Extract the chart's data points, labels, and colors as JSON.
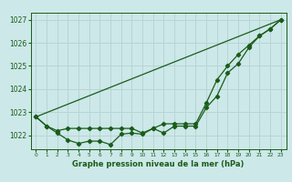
{
  "title": "Graphe pression niveau de la mer (hPa)",
  "bg_color": "#cce8e8",
  "grid_color": "#b8d4d4",
  "line_color": "#1a5c1a",
  "xlim": [
    -0.5,
    23.5
  ],
  "ylim": [
    1021.4,
    1027.3
  ],
  "yticks": [
    1022,
    1023,
    1024,
    1025,
    1026,
    1027
  ],
  "xticks": [
    0,
    1,
    2,
    3,
    4,
    5,
    6,
    7,
    8,
    9,
    10,
    11,
    12,
    13,
    14,
    15,
    16,
    17,
    18,
    19,
    20,
    21,
    22,
    23
  ],
  "series1_x": [
    0,
    1,
    2,
    3,
    4,
    5,
    6,
    7,
    8,
    9,
    10,
    11,
    12,
    13,
    14,
    15,
    16,
    17,
    18,
    19,
    20,
    21,
    22,
    23
  ],
  "series1_y": [
    1022.8,
    1022.4,
    1022.1,
    1021.8,
    1021.65,
    1021.75,
    1021.75,
    1021.6,
    1022.05,
    1022.1,
    1022.05,
    1022.3,
    1022.1,
    1022.4,
    1022.4,
    1022.4,
    1023.2,
    1023.7,
    1024.7,
    1025.1,
    1025.8,
    1026.3,
    1026.6,
    1027.0
  ],
  "series2_x": [
    0,
    1,
    2,
    3,
    4,
    5,
    6,
    7,
    8,
    9,
    10,
    11,
    12,
    13,
    14,
    15,
    16,
    17,
    18,
    19,
    20,
    21,
    22,
    23
  ],
  "series2_y": [
    1022.8,
    1022.4,
    1022.2,
    1022.3,
    1022.3,
    1022.3,
    1022.3,
    1022.3,
    1022.3,
    1022.3,
    1022.1,
    1022.3,
    1022.5,
    1022.5,
    1022.5,
    1022.5,
    1023.4,
    1024.4,
    1025.0,
    1025.5,
    1025.9,
    1026.3,
    1026.6,
    1027.0
  ],
  "trend_x": [
    0,
    23
  ],
  "trend_y": [
    1022.8,
    1027.0
  ],
  "xlabel_fontsize": 6.0,
  "ytick_fontsize": 5.5,
  "xtick_fontsize": 4.2
}
